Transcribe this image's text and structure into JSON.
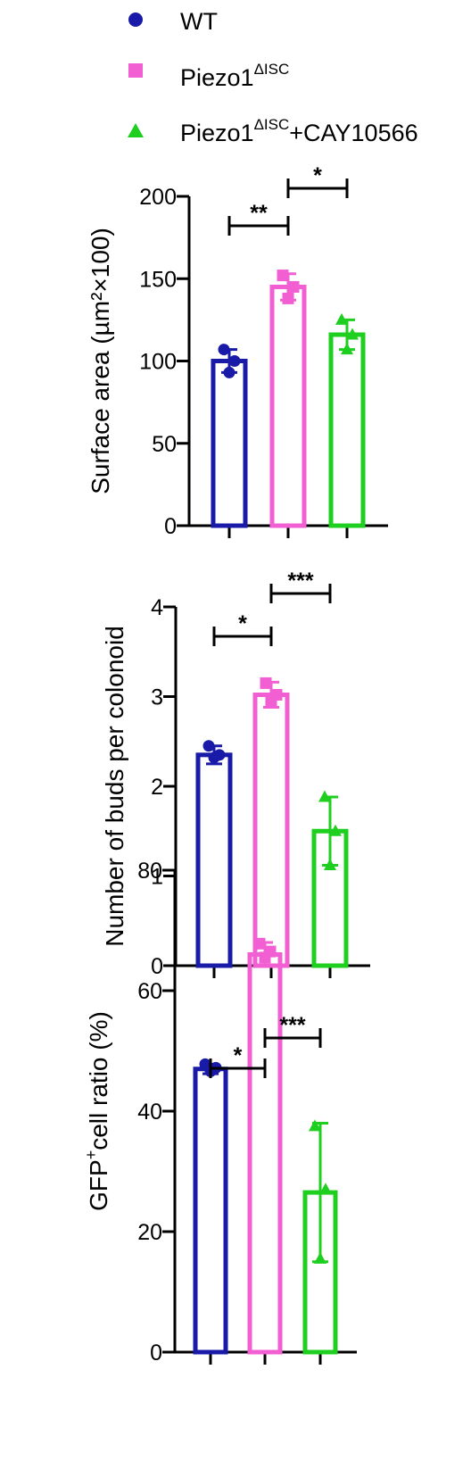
{
  "legend": [
    {
      "label": "Piezo1",
      "sup": "",
      "suffix": "",
      "base": "WT",
      "color": "#1a1aa8",
      "marker": "circle"
    },
    {
      "base": "Piezo1",
      "sup": "ΔISC",
      "suffix": "",
      "color": "#f25fd3",
      "marker": "square"
    },
    {
      "base": "Piezo1",
      "sup": "ΔISC",
      "suffix": "+CAY10566",
      "color": "#1fcf1f",
      "marker": "triangle"
    }
  ],
  "chart_data": [
    {
      "type": "bar",
      "categories": [
        "WT",
        "Piezo1ΔISC",
        "Piezo1ΔISC+CAY10566"
      ],
      "values": [
        100,
        145,
        116
      ],
      "error": [
        7,
        8,
        9
      ],
      "points": [
        [
          107,
          100,
          93
        ],
        [
          152,
          145,
          138
        ],
        [
          125,
          116,
          107
        ]
      ],
      "ylabel": "Surface area (µm²×100)",
      "ylim": [
        0,
        200
      ],
      "yticks": [
        0,
        50,
        100,
        150,
        200
      ],
      "significance": [
        {
          "from": 0,
          "to": 1,
          "label": "**"
        },
        {
          "from": 1,
          "to": 2,
          "label": "*"
        }
      ]
    },
    {
      "type": "bar",
      "categories": [
        "WT",
        "Piezo1ΔISC",
        "Piezo1ΔISC+CAY10566"
      ],
      "values": [
        2.35,
        3.02,
        1.5
      ],
      "error": [
        0.1,
        0.14,
        0.38
      ],
      "points": [
        [
          2.45,
          2.35,
          2.32
        ],
        [
          3.15,
          3.02,
          2.95
        ],
        [
          1.88,
          1.5,
          1.12
        ]
      ],
      "ylabel": "Number of buds per colonoid",
      "ylim": [
        0,
        4
      ],
      "yticks": [
        0,
        1,
        2,
        3,
        4
      ],
      "significance": [
        {
          "from": 0,
          "to": 1,
          "label": "*"
        },
        {
          "from": 1,
          "to": 2,
          "label": "***"
        }
      ]
    },
    {
      "type": "bar",
      "categories": [
        "WT",
        "Piezo1ΔISC",
        "Piezo1ΔISC+CAY10566"
      ],
      "values": [
        47,
        66,
        26.5
      ],
      "error": [
        0.8,
        2.0,
        11.5
      ],
      "points": [
        [
          47.8,
          47.2,
          46.6
        ],
        [
          67.8,
          66.5,
          65.5
        ],
        [
          37.5,
          27,
          15.5
        ]
      ],
      "ylabel": "GFP⁺cell ratio (%)",
      "ylabel_base": "GFP",
      "ylabel_sup": "+",
      "ylabel_rest": "cell ratio (%)",
      "ylim": [
        0,
        80
      ],
      "yticks": [
        0,
        20,
        40,
        60,
        80
      ],
      "significance": [
        {
          "from": 0,
          "to": 1,
          "label": "*"
        },
        {
          "from": 1,
          "to": 2,
          "label": "***"
        }
      ]
    }
  ]
}
